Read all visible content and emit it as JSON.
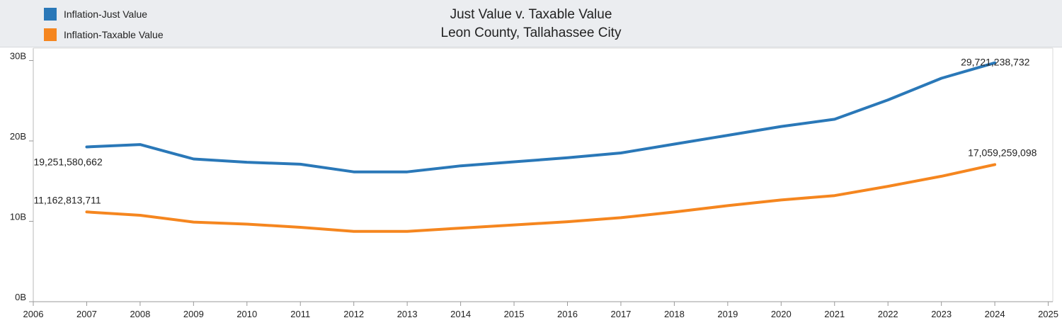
{
  "chart_data": {
    "type": "line",
    "title": "Just Value v. Taxable Value",
    "subtitle": "Leon County, Tallahassee City",
    "legend_position": "top-left",
    "grid": false,
    "x_ticks": [
      "2006",
      "2007",
      "2008",
      "2009",
      "2010",
      "2011",
      "2012",
      "2013",
      "2014",
      "2015",
      "2016",
      "2017",
      "2018",
      "2019",
      "2020",
      "2021",
      "2022",
      "2023",
      "2024",
      "2025"
    ],
    "xlim": [
      2006,
      2025
    ],
    "y_ticks": [
      "0B",
      "10B",
      "20B",
      "30B"
    ],
    "y_tick_values": [
      0,
      10000000000,
      20000000000,
      30000000000
    ],
    "ylim": [
      0,
      31000000000
    ],
    "x": [
      2007,
      2008,
      2009,
      2010,
      2011,
      2012,
      2013,
      2014,
      2015,
      2016,
      2017,
      2018,
      2019,
      2020,
      2021,
      2022,
      2023,
      2024
    ],
    "series": [
      {
        "name": "Inflation-Just Value",
        "color": "#2a78b8",
        "values": [
          19251580662,
          19550000000,
          17750000000,
          17350000000,
          17100000000,
          16150000000,
          16150000000,
          16900000000,
          17400000000,
          17900000000,
          18500000000,
          19600000000,
          20700000000,
          21800000000,
          22700000000,
          25100000000,
          27800000000,
          29721238732
        ],
        "labels": [
          {
            "index": 0,
            "text": "19,251,580,662"
          },
          {
            "index": 17,
            "text": "29,721,238,732"
          }
        ]
      },
      {
        "name": "Inflation-Taxable Value",
        "color": "#f5861f",
        "values": [
          11162813711,
          10750000000,
          9900000000,
          9650000000,
          9250000000,
          8750000000,
          8750000000,
          9150000000,
          9550000000,
          9950000000,
          10450000000,
          11150000000,
          11950000000,
          12650000000,
          13200000000,
          14350000000,
          15600000000,
          17059259098
        ],
        "labels": [
          {
            "index": 0,
            "text": "11,162,813,711"
          },
          {
            "index": 17,
            "text": "17,059,259,098"
          }
        ]
      }
    ]
  }
}
